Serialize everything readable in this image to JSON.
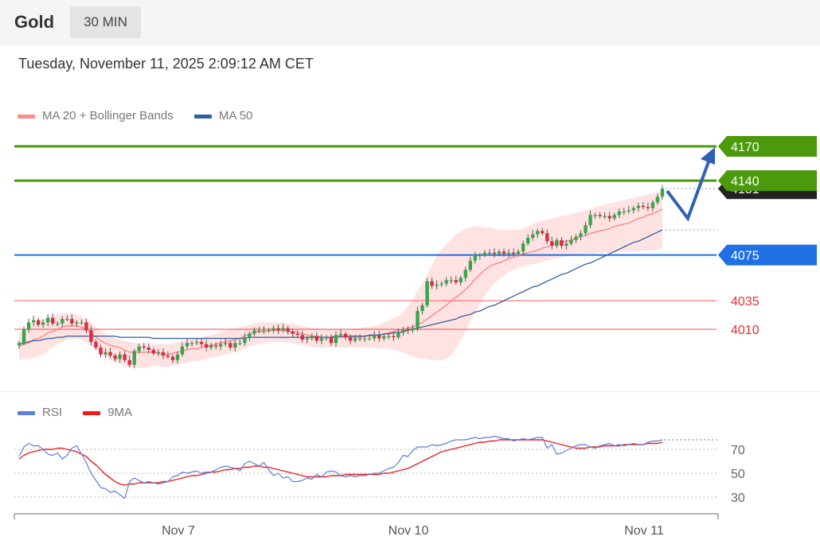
{
  "header": {
    "symbol": "Gold",
    "timeframe": "30 MIN",
    "timestamp": "Tuesday, November 11, 2025 2:09:12 AM CET"
  },
  "legend_main": [
    {
      "label": "MA 20 + Bollinger Bands",
      "color": "#ff8a8a"
    },
    {
      "label": "MA 50",
      "color": "#2e5f9e"
    }
  ],
  "legend_rsi": [
    {
      "label": "RSI",
      "color": "#5b7fe0"
    },
    {
      "label": "9MA",
      "color": "#ee1c1c"
    }
  ],
  "chart_data": [
    {
      "type": "candlestick",
      "title": "Gold",
      "ylim": [
        3960,
        4190
      ],
      "x_ticks": [
        "Nov 7",
        "Nov 10",
        "Nov 11"
      ],
      "current_price_label": "4131",
      "levels": [
        {
          "label": "4170",
          "value": 4170,
          "kind": "target",
          "color": "#4a9a0c"
        },
        {
          "label": "4140",
          "value": 4140,
          "kind": "target",
          "color": "#4a9a0c"
        },
        {
          "label": "4075",
          "value": 4075,
          "kind": "pivot",
          "color": "#1f6fe5"
        },
        {
          "label": "4035",
          "value": 4035,
          "kind": "support",
          "color": "#ee2a2a"
        },
        {
          "label": "4010",
          "value": 4010,
          "kind": "support",
          "color": "#ee2a2a"
        }
      ],
      "forecast_path": [
        4131,
        4107,
        4170
      ],
      "close": [
        3998,
        4010,
        4016,
        4018,
        4014,
        4016,
        4020,
        4015,
        4015,
        4019,
        4019,
        4015,
        4016,
        4016,
        4009,
        3999,
        3994,
        3988,
        3990,
        3987,
        3984,
        3988,
        3983,
        3979,
        3991,
        3995,
        3994,
        3992,
        3989,
        3990,
        3987,
        3986,
        3983,
        3988,
        3995,
        3998,
        3998,
        3999,
        3997,
        3994,
        3996,
        3995,
        3997,
        3998,
        3994,
        3998,
        3998,
        4003,
        4006,
        4009,
        4009,
        4009,
        4009,
        4011,
        4009,
        4011,
        4008,
        4006,
        4005,
        4001,
        4002,
        4004,
        4000,
        4002,
        4003,
        3998,
        4005,
        4006,
        4003,
        4000,
        4002,
        4002,
        4002,
        4002,
        4005,
        4002,
        4004,
        4004,
        4003,
        4007,
        4010,
        4009,
        4011,
        4026,
        4031,
        4052,
        4048,
        4049,
        4050,
        4053,
        4053,
        4051,
        4055,
        4062,
        4070,
        4074,
        4075,
        4077,
        4077,
        4076,
        4078,
        4076,
        4077,
        4076,
        4078,
        4085,
        4090,
        4093,
        4096,
        4094,
        4087,
        4083,
        4088,
        4083,
        4085,
        4088,
        4091,
        4094,
        4101,
        4110,
        4110,
        4109,
        4109,
        4107,
        4110,
        4113,
        4113,
        4114,
        4116,
        4118,
        4117,
        4116,
        4121,
        4126,
        4133
      ],
      "ma20": [
        3995,
        3997,
        3998,
        4001,
        4002,
        4004,
        4007,
        4008,
        4010,
        4012,
        4013,
        4013,
        4013,
        4012,
        4010,
        4007,
        4003,
        4000,
        3998,
        3996,
        3995,
        3994,
        3992,
        3990,
        3990,
        3990,
        3990,
        3990,
        3990,
        3989,
        3988,
        3988,
        3989,
        3990,
        3991,
        3992,
        3993,
        3993,
        3994,
        3995,
        3996,
        3997,
        3998,
        3999,
        4000,
        4001,
        4002,
        4004,
        4006,
        4007,
        4008,
        4008,
        4009,
        4009,
        4009,
        4009,
        4008,
        4008,
        4007,
        4006,
        4005,
        4004,
        4004,
        4003,
        4003,
        4003,
        4003,
        4003,
        4003,
        4003,
        4003,
        4003,
        4004,
        4004,
        4005,
        4005,
        4006,
        4007,
        4008,
        4009,
        4010,
        4011,
        4012,
        4014,
        4016,
        4019,
        4022,
        4025,
        4028,
        4031,
        4035,
        4038,
        4041,
        4045,
        4049,
        4054,
        4058,
        4062,
        4065,
        4067,
        4068,
        4070,
        4072,
        4073,
        4075,
        4076,
        4077,
        4078,
        4079,
        4081,
        4082,
        4084,
        4085,
        4086,
        4087,
        4088,
        4090,
        4091,
        4092,
        4094,
        4095,
        4096,
        4097,
        4098,
        4100,
        4101,
        4102,
        4103,
        4105,
        4107,
        4108,
        4110,
        4111,
        4113,
        4115
      ],
      "bb_upper": [
        4007,
        4010,
        4012,
        4015,
        4017,
        4019,
        4021,
        4022,
        4023,
        4024,
        4024,
        4024,
        4023,
        4021,
        4019,
        4016,
        4012,
        4009,
        4006,
        4004,
        4002,
        4001,
        4000,
        3999,
        3998,
        3998,
        3997,
        3997,
        3997,
        3997,
        3997,
        3997,
        3998,
        3999,
        4000,
        4001,
        4002,
        4002,
        4003,
        4004,
        4005,
        4006,
        4008,
        4009,
        4010,
        4011,
        4012,
        4013,
        4014,
        4015,
        4016,
        4016,
        4016,
        4016,
        4016,
        4016,
        4015,
        4015,
        4014,
        4013,
        4012,
        4011,
        4011,
        4010,
        4010,
        4010,
        4010,
        4010,
        4010,
        4010,
        4011,
        4011,
        4012,
        4012,
        4013,
        4014,
        4016,
        4018,
        4020,
        4022,
        4026,
        4030,
        4036,
        4044,
        4050,
        4058,
        4066,
        4074,
        4080,
        4085,
        4089,
        4093,
        4096,
        4098,
        4099,
        4100,
        4100,
        4099,
        4099,
        4098,
        4097,
        4097,
        4097,
        4097,
        4097,
        4098,
        4100,
        4102,
        4104,
        4105,
        4106,
        4107,
        4108,
        4109,
        4110,
        4111,
        4112,
        4113,
        4114,
        4115,
        4117,
        4118,
        4119,
        4120,
        4121,
        4122,
        4123,
        4124,
        4125,
        4126,
        4127,
        4128,
        4129,
        4130,
        4131
      ],
      "bb_lower": [
        3983,
        3984,
        3984,
        3985,
        3986,
        3988,
        3991,
        3994,
        3997,
        3999,
        4001,
        4001,
        4002,
        4001,
        3999,
        3996,
        3992,
        3989,
        3986,
        3983,
        3981,
        3980,
        3978,
        3977,
        3977,
        3976,
        3976,
        3977,
        3978,
        3978,
        3977,
        3977,
        3978,
        3979,
        3980,
        3981,
        3982,
        3982,
        3983,
        3984,
        3985,
        3986,
        3987,
        3988,
        3989,
        3990,
        3991,
        3993,
        3995,
        3996,
        3997,
        3998,
        3999,
        3999,
        3999,
        3999,
        3998,
        3998,
        3997,
        3996,
        3995,
        3995,
        3994,
        3994,
        3994,
        3994,
        3994,
        3994,
        3994,
        3994,
        3994,
        3994,
        3994,
        3994,
        3994,
        3993,
        3993,
        3993,
        3992,
        3991,
        3990,
        3988,
        3986,
        3985,
        3984,
        3984,
        3983,
        3983,
        3983,
        3984,
        3987,
        3993,
        4000,
        4008,
        4017,
        4025,
        4032,
        4039,
        4045,
        4050,
        4054,
        4057,
        4060,
        4062,
        4064,
        4065,
        4066,
        4067,
        4068,
        4069,
        4070,
        4071,
        4072,
        4073,
        4074,
        4074,
        4075,
        4075,
        4076,
        4076,
        4076,
        4077,
        4077,
        4077,
        4077,
        4078,
        4078,
        4078,
        4078,
        4078,
        4079,
        4079,
        4079,
        4080,
        4080
      ],
      "ma50": [
        3997,
        3998,
        3999,
        4000,
        4000,
        4001,
        4002,
        4002,
        4003,
        4003,
        4004,
        4004,
        4004,
        4004,
        4004,
        4004,
        4004,
        4004,
        4004,
        4004,
        4004,
        4003,
        4003,
        4003,
        4003,
        4003,
        4003,
        4003,
        4002,
        4002,
        4002,
        4002,
        4002,
        4002,
        4002,
        4002,
        4002,
        4002,
        4002,
        4002,
        4002,
        4002,
        4002,
        4002,
        4002,
        4002,
        4002,
        4002,
        4003,
        4003,
        4003,
        4003,
        4003,
        4003,
        4003,
        4003,
        4003,
        4003,
        4003,
        4003,
        4003,
        4003,
        4003,
        4003,
        4003,
        4003,
        4004,
        4004,
        4004,
        4004,
        4004,
        4004,
        4004,
        4005,
        4005,
        4005,
        4006,
        4006,
        4007,
        4007,
        4008,
        4009,
        4010,
        4011,
        4012,
        4013,
        4014,
        4015,
        4016,
        4017,
        4018,
        4019,
        4021,
        4022,
        4023,
        4025,
        4026,
        4028,
        4030,
        4031,
        4033,
        4035,
        4037,
        4039,
        4041,
        4043,
        4045,
        4047,
        4048,
        4050,
        4052,
        4054,
        4056,
        4058,
        4059,
        4061,
        4063,
        4065,
        4067,
        4068,
        4070,
        4072,
        4074,
        4076,
        4078,
        4080,
        4082,
        4084,
        4086,
        4087,
        4089,
        4091,
        4093,
        4095,
        4097
      ]
    },
    {
      "type": "line",
      "title": "RSI",
      "ylim": [
        20,
        92
      ],
      "y_ticks": [
        30,
        50,
        70
      ],
      "series": [
        {
          "name": "RSI",
          "values": [
            64,
            72,
            75,
            73,
            73,
            70,
            66,
            65,
            67,
            62,
            65,
            71,
            73,
            66,
            59,
            50,
            44,
            38,
            37,
            34,
            35,
            32,
            29,
            43,
            46,
            44,
            42,
            43,
            42,
            41,
            42,
            43,
            47,
            48,
            51,
            50,
            51,
            52,
            50,
            51,
            51,
            53,
            55,
            56,
            55,
            54,
            52,
            58,
            60,
            58,
            56,
            59,
            53,
            48,
            50,
            46,
            47,
            43,
            43,
            44,
            46,
            45,
            49,
            47,
            51,
            52,
            51,
            48,
            47,
            48,
            47,
            48,
            48,
            49,
            50,
            50,
            52,
            54,
            55,
            59,
            65,
            64,
            69,
            72,
            72,
            72,
            74,
            73,
            74,
            75,
            77,
            78,
            78,
            78,
            79,
            80,
            79,
            80,
            80,
            81,
            80,
            79,
            79,
            77,
            78,
            79,
            78,
            79,
            80,
            80,
            71,
            74,
            66,
            67,
            69,
            71,
            73,
            74,
            74,
            72,
            71,
            73,
            74,
            75,
            73,
            74,
            73,
            74,
            75,
            74,
            74,
            76,
            77,
            77,
            78
          ]
        },
        {
          "name": "9MA",
          "values": [
            62,
            65,
            67,
            68,
            69,
            70,
            70,
            70,
            71,
            71,
            70,
            69,
            68,
            66,
            64,
            60,
            57,
            53,
            49,
            46,
            43,
            41,
            40,
            41,
            41,
            42,
            42,
            42,
            42,
            42,
            43,
            43,
            44,
            45,
            46,
            47,
            48,
            48,
            49,
            50,
            51,
            51,
            52,
            53,
            53,
            54,
            54,
            55,
            55,
            56,
            56,
            55,
            55,
            54,
            53,
            52,
            51,
            50,
            49,
            48,
            47,
            47,
            47,
            47,
            47,
            48,
            48,
            48,
            49,
            49,
            49,
            49,
            49,
            49,
            49,
            49,
            50,
            50,
            51,
            52,
            53,
            54,
            56,
            58,
            60,
            62,
            64,
            66,
            68,
            69,
            70,
            71,
            72,
            73,
            74,
            75,
            76,
            76,
            77,
            77,
            78,
            78,
            78,
            78,
            78,
            78,
            78,
            78,
            78,
            78,
            77,
            76,
            75,
            74,
            73,
            72,
            71,
            71,
            71,
            72,
            72,
            72,
            73,
            73,
            73,
            73,
            74,
            74,
            74,
            74,
            74,
            75,
            75,
            75,
            76
          ]
        }
      ]
    }
  ]
}
